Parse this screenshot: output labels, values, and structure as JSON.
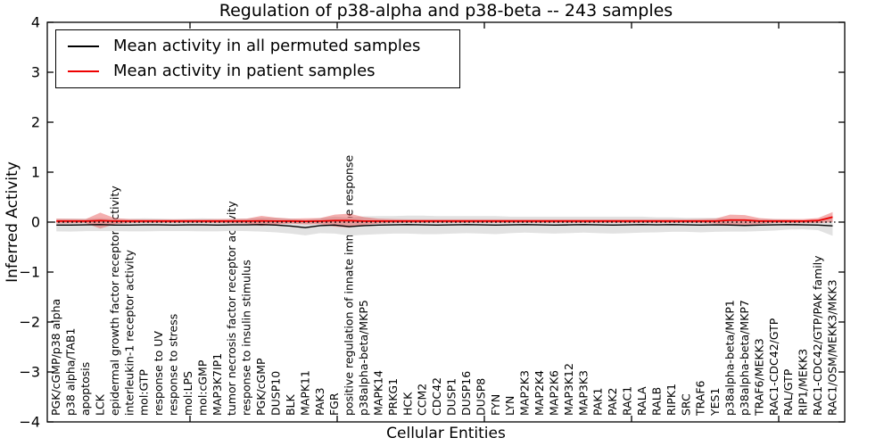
{
  "chart_data": {
    "type": "line",
    "title": "Regulation of p38-alpha and p38-beta -- 243 samples",
    "xlabel": "Cellular Entities",
    "ylabel": "Inferred Activity",
    "ylim": [
      -4,
      4
    ],
    "yticks": [
      4,
      3,
      2,
      1,
      0,
      -1,
      -2,
      -3,
      -4
    ],
    "grid": false,
    "legend_position": "upper left",
    "zero_reference_line": "black dotted at y=0",
    "categories": [
      "PGK/cGMP/p38 alpha",
      "p38 alpha/TAB1",
      "apoptosis",
      "LCK",
      "epidermal growth factor receptor activity",
      "interleukin-1 receptor activity",
      "mol:GTP",
      "response to UV",
      "response to stress",
      "mol:LPS",
      "mol:cGMP",
      "MAP3K7IP1",
      "tumor necrosis factor receptor activity",
      "response to insulin stimulus",
      "PGK/cGMP",
      "DUSP10",
      "BLK",
      "MAPK11",
      "PAK3",
      "FGR",
      "positive regulation of innate immune response",
      "p38alpha-beta/MKP5",
      "MAPK14",
      "PRKG1",
      "HCK",
      "CCM2",
      "CDC42",
      "DUSP1",
      "DUSP16",
      "DUSP8",
      "FYN",
      "LYN",
      "MAP2K3",
      "MAP2K4",
      "MAP2K6",
      "MAP3K12",
      "MAP3K3",
      "PAK1",
      "PAK2",
      "RAC1",
      "RALA",
      "RALB",
      "RIPK1",
      "SRC",
      "TRAF6",
      "YES1",
      "p38alpha-beta/MKP1",
      "p38alpha-beta/MKP7",
      "TRAF6/MEKK3",
      "RAC1-CDC42/GTP",
      "RAL/GTP",
      "RIP1/MEKK3",
      "RAC1-CDC42/GTP/PAK family",
      "RAC1/OSM/MEKK3/MKK3"
    ],
    "series": [
      {
        "name": "Mean activity in all permuted samples",
        "color": "#000000",
        "band_color": "#e2e2e2",
        "values": [
          -0.06,
          -0.06,
          -0.055,
          -0.05,
          -0.06,
          -0.06,
          -0.055,
          -0.055,
          -0.06,
          -0.055,
          -0.055,
          -0.06,
          -0.055,
          -0.055,
          -0.05,
          -0.06,
          -0.08,
          -0.11,
          -0.07,
          -0.06,
          -0.09,
          -0.07,
          -0.06,
          -0.055,
          -0.05,
          -0.055,
          -0.06,
          -0.055,
          -0.05,
          -0.055,
          -0.06,
          -0.055,
          -0.05,
          -0.055,
          -0.06,
          -0.055,
          -0.05,
          -0.055,
          -0.06,
          -0.055,
          -0.05,
          -0.055,
          -0.05,
          -0.055,
          -0.06,
          -0.055,
          -0.06,
          -0.065,
          -0.06,
          -0.055,
          -0.05,
          -0.055,
          -0.06,
          -0.075
        ],
        "band": [
          0.125,
          0.13,
          0.125,
          0.13,
          0.12,
          0.125,
          0.13,
          0.125,
          0.12,
          0.125,
          0.13,
          0.125,
          0.12,
          0.125,
          0.14,
          0.145,
          0.15,
          0.155,
          0.15,
          0.17,
          0.18,
          0.185,
          0.18,
          0.175,
          0.18,
          0.185,
          0.18,
          0.175,
          0.17,
          0.175,
          0.18,
          0.165,
          0.16,
          0.165,
          0.17,
          0.165,
          0.16,
          0.165,
          0.17,
          0.165,
          0.16,
          0.15,
          0.145,
          0.14,
          0.145,
          0.14,
          0.13,
          0.125,
          0.12,
          0.115,
          0.1,
          0.09,
          0.1,
          0.2
        ]
      },
      {
        "name": "Mean activity in patient samples",
        "color": "#ee0000",
        "band_color": "rgba(225,45,45,0.38)",
        "values": [
          0.02,
          0.02,
          0.02,
          0.03,
          0.02,
          0.02,
          0.02,
          0.02,
          0.02,
          0.02,
          0.02,
          0.02,
          0.02,
          0.02,
          0.025,
          0.02,
          0.02,
          0.015,
          0.02,
          0.03,
          0.03,
          0.02,
          0.02,
          0.02,
          0.02,
          0.02,
          0.02,
          0.02,
          0.02,
          0.02,
          0.02,
          0.02,
          0.02,
          0.02,
          0.02,
          0.02,
          0.02,
          0.02,
          0.02,
          0.02,
          0.02,
          0.02,
          0.02,
          0.02,
          0.02,
          0.02,
          0.04,
          0.04,
          0.02,
          0.02,
          0.02,
          0.02,
          0.03,
          0.1
        ],
        "band": [
          0.05,
          0.045,
          0.04,
          0.16,
          0.06,
          0.04,
          0.035,
          0.035,
          0.035,
          0.035,
          0.035,
          0.04,
          0.045,
          0.05,
          0.1,
          0.07,
          0.05,
          0.06,
          0.06,
          0.12,
          0.14,
          0.08,
          0.05,
          0.04,
          0.035,
          0.035,
          0.035,
          0.035,
          0.035,
          0.035,
          0.035,
          0.035,
          0.035,
          0.035,
          0.035,
          0.035,
          0.035,
          0.035,
          0.035,
          0.035,
          0.035,
          0.035,
          0.035,
          0.035,
          0.04,
          0.05,
          0.11,
          0.1,
          0.06,
          0.04,
          0.04,
          0.04,
          0.05,
          0.1
        ]
      }
    ]
  }
}
